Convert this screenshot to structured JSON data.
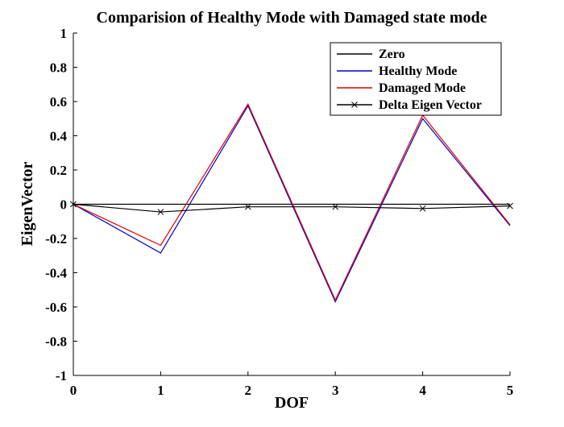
{
  "chart_data": {
    "type": "line",
    "title": "Comparision of Healthy Mode with Damaged state mode",
    "xlabel": "DOF",
    "ylabel": "EigenVector",
    "xlim": [
      0,
      5
    ],
    "ylim": [
      -1,
      1
    ],
    "xticks": [
      "0",
      "1",
      "2",
      "3",
      "4",
      "5"
    ],
    "yticks": [
      "1",
      "0.8",
      "0.6",
      "0.4",
      "0.2",
      "0",
      "-0.2",
      "-0.4",
      "-0.6",
      "-0.8",
      "-1"
    ],
    "grid": false,
    "legend_position": "top-right",
    "x": [
      0,
      1,
      2,
      3,
      4,
      5
    ],
    "series": [
      {
        "name": "Zero",
        "color": "#000000",
        "marker": "none",
        "values": [
          0,
          0,
          0,
          0,
          0,
          0
        ]
      },
      {
        "name": "Healthy Mode",
        "color": "#0000cc",
        "marker": "none",
        "values": [
          0,
          -0.285,
          0.575,
          -0.57,
          0.5,
          -0.125
        ]
      },
      {
        "name": "Damaged Mode",
        "color": "#dd0000",
        "marker": "none",
        "values": [
          0,
          -0.24,
          0.585,
          -0.56,
          0.52,
          -0.12
        ]
      },
      {
        "name": "Delta Eigen Vector",
        "color": "#000000",
        "marker": "x",
        "values": [
          0,
          -0.045,
          -0.015,
          -0.015,
          -0.025,
          -0.01
        ]
      }
    ]
  }
}
